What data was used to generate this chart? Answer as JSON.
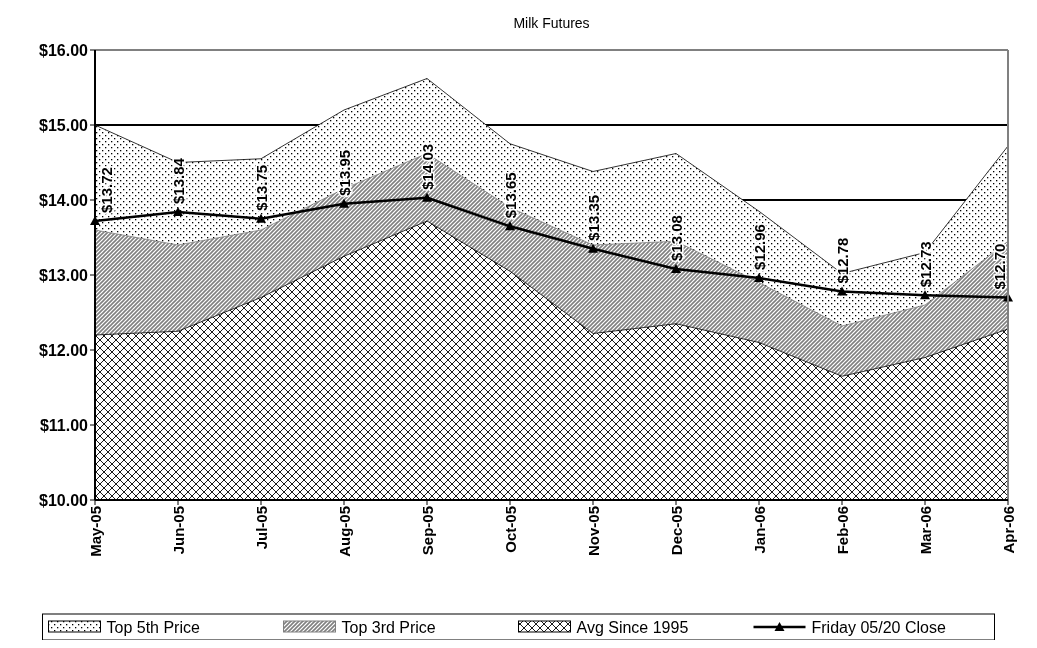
{
  "chart_data": {
    "type": "area",
    "title": "Milk Futures",
    "categories": [
      "May-05",
      "Jun-05",
      "Jul-05",
      "Aug-05",
      "Sep-05",
      "Oct-05",
      "Nov-05",
      "Dec-05",
      "Jan-06",
      "Feb-06",
      "Mar-06",
      "Apr-06"
    ],
    "series": [
      {
        "name": "Top 5th Price",
        "color": "#000000",
        "values": [
          15.0,
          14.5,
          14.55,
          15.2,
          15.62,
          14.75,
          14.38,
          14.62,
          13.85,
          13.02,
          13.3,
          14.72
        ]
      },
      {
        "name": "Top 3rd Price",
        "color": "#808080",
        "values": [
          13.6,
          13.4,
          13.6,
          14.15,
          14.62,
          13.9,
          13.4,
          13.45,
          12.9,
          12.32,
          12.6,
          13.45
        ]
      },
      {
        "name": "Avg Since 1995",
        "color": "#000000",
        "values": [
          12.2,
          12.25,
          12.7,
          13.25,
          13.72,
          13.05,
          12.22,
          12.35,
          12.1,
          11.65,
          11.9,
          12.28
        ]
      },
      {
        "name": "Friday 05/20 Close",
        "type": "line",
        "color": "#000000",
        "marker": "triangle",
        "values": [
          13.72,
          13.84,
          13.75,
          13.95,
          14.03,
          13.65,
          13.35,
          13.08,
          12.96,
          12.78,
          12.73,
          12.7
        ],
        "value_labels": [
          "$13.72",
          "$13.84",
          "$13.75",
          "$13.95",
          "$14.03",
          "$13.65",
          "$13.35",
          "$13.08",
          "$12.96",
          "$12.78",
          "$12.73",
          "$12.70"
        ]
      }
    ],
    "ylim": [
      10,
      16
    ],
    "yticks": [
      {
        "value": 10,
        "label": "$10.00"
      },
      {
        "value": 11,
        "label": "$11.00"
      },
      {
        "value": 12,
        "label": "$12.00"
      },
      {
        "value": 13,
        "label": "$13.00"
      },
      {
        "value": 14,
        "label": "$14.00"
      },
      {
        "value": 15,
        "label": "$15.00"
      },
      {
        "value": 16,
        "label": "$16.00"
      }
    ],
    "grid": "y",
    "legend": "bottom"
  }
}
